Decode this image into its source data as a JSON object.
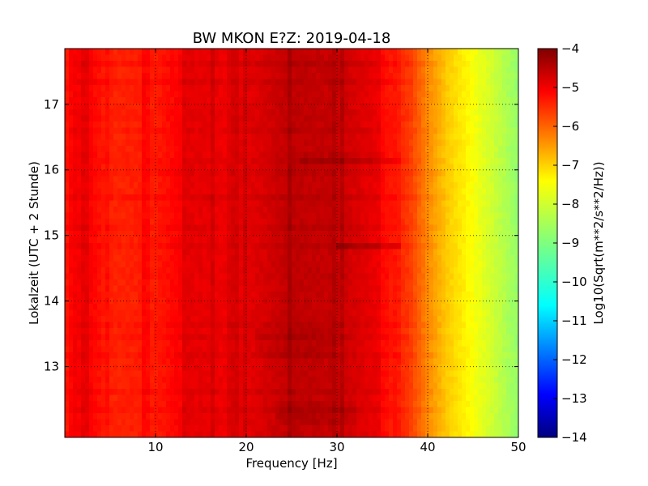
{
  "chart_data": {
    "type": "heatmap",
    "title": "BW MKON E?Z: 2019-04-18",
    "xlabel": "Frequency [Hz]",
    "ylabel": "Lokalzeit (UTC + 2 Stunde)",
    "colorbar_label": "Log10(Sqrt(m**2/s**2/Hz))",
    "xlim": [
      0,
      50
    ],
    "ylim": [
      17.85,
      11.92
    ],
    "x_ticks": [
      10,
      20,
      30,
      40,
      50
    ],
    "y_ticks": [
      13,
      14,
      15,
      16,
      17
    ],
    "colorbar_range": [
      -14,
      -4
    ],
    "colorbar_ticks": [
      -4,
      -5,
      -6,
      -7,
      -8,
      -9,
      -10,
      -11,
      -12,
      -13,
      -14
    ],
    "colormap": "jet",
    "grid": true,
    "frequency_profile_hz": [
      0,
      2,
      5,
      10,
      15,
      20,
      25,
      30,
      35,
      38,
      40,
      42,
      45,
      48,
      50
    ],
    "frequency_profile_value": [
      -5.5,
      -5.1,
      -5.6,
      -5.5,
      -5.0,
      -5.2,
      -4.8,
      -4.9,
      -5.3,
      -5.8,
      -6.6,
      -7.2,
      -7.8,
      -8.4,
      -8.8
    ],
    "narrow_band_lines_hz": [
      0.9,
      2.3,
      4.8,
      8.7,
      9.1,
      13.2,
      13.8,
      16.3,
      18.8,
      19.9,
      24.8,
      29.6,
      30.6,
      36.6
    ],
    "event_rows_time": [
      12.35,
      12.6,
      13.15,
      13.43,
      13.62,
      14.42,
      14.82,
      15.13,
      15.58,
      15.93,
      16.17,
      16.58,
      16.83,
      17.33,
      17.62
    ],
    "strong_event_time": [
      14.86,
      16.17
    ],
    "strong_event_freq_range_hz": [
      [
        30,
        37
      ],
      [
        26,
        37
      ]
    ]
  }
}
